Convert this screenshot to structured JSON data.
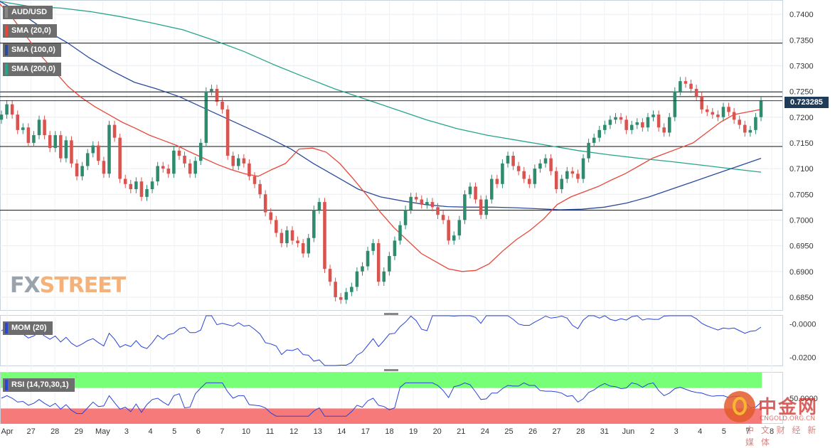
{
  "symbol_label": "AUD/USD",
  "indicators": {
    "sma20": "SMA (20,0)",
    "sma100": "SMA (100,0)",
    "sma200": "SMA (200,0)",
    "mom": "MOM (20)",
    "rsi": "RSI (14,70,30,1)"
  },
  "brand": {
    "part1": "FX",
    "part2": "STREET"
  },
  "current_price": "0.723285",
  "colors": {
    "up": "#2e8b6e",
    "down": "#d9534f",
    "sma20": "#e8483a",
    "sma100": "#2a4a9c",
    "sma200": "#27a58a",
    "mom_line": "#2a44d6",
    "rsi_over": "#77ff77",
    "rsi_under": "#f77a7a"
  },
  "chart_data": {
    "type": "candlestick",
    "ylim": [
      0.6825,
      0.7425
    ],
    "y_ticks": [
      "0.7400",
      "0.7350",
      "0.7300",
      "0.7250",
      "0.7200",
      "0.7150",
      "0.7100",
      "0.7050",
      "0.7000",
      "0.6950",
      "0.6900",
      "0.6850"
    ],
    "x_labels": [
      "Apr",
      "27",
      "28",
      "29",
      "May",
      "3",
      "4",
      "5",
      "6",
      "7",
      "10",
      "11",
      "12",
      "13",
      "14",
      "17",
      "18",
      "19",
      "20",
      "21",
      "24",
      "25",
      "26",
      "27",
      "28",
      "31",
      "Jun",
      "2",
      "3",
      "4",
      "5",
      "7",
      "8"
    ],
    "horizontal_lines": [
      0.7344,
      0.7249,
      0.724,
      0.7143,
      0.7019
    ],
    "closes": [
      0.7205,
      0.7225,
      0.7205,
      0.7175,
      0.718,
      0.715,
      0.7165,
      0.7195,
      0.7165,
      0.714,
      0.7165,
      0.712,
      0.7155,
      0.711,
      0.7085,
      0.7105,
      0.713,
      0.7145,
      0.7115,
      0.709,
      0.7185,
      0.716,
      0.708,
      0.707,
      0.706,
      0.7075,
      0.7045,
      0.706,
      0.7075,
      0.7105,
      0.71,
      0.709,
      0.7135,
      0.7125,
      0.711,
      0.709,
      0.7115,
      0.715,
      0.725,
      0.7255,
      0.723,
      0.7215,
      0.7125,
      0.7105,
      0.712,
      0.711,
      0.7085,
      0.707,
      0.705,
      0.7015,
      0.7,
      0.6975,
      0.6955,
      0.698,
      0.696,
      0.6955,
      0.6935,
      0.6965,
      0.702,
      0.7035,
      0.6905,
      0.688,
      0.685,
      0.6845,
      0.686,
      0.687,
      0.69,
      0.691,
      0.694,
      0.6955,
      0.688,
      0.69,
      0.693,
      0.696,
      0.699,
      0.702,
      0.7045,
      0.704,
      0.703,
      0.7035,
      0.7025,
      0.701,
      0.7,
      0.696,
      0.697,
      0.7,
      0.705,
      0.7065,
      0.704,
      0.701,
      0.704,
      0.708,
      0.707,
      0.711,
      0.7125,
      0.7105,
      0.7095,
      0.708,
      0.707,
      0.71,
      0.711,
      0.712,
      0.7095,
      0.706,
      0.708,
      0.7095,
      0.709,
      0.708,
      0.712,
      0.715,
      0.716,
      0.7175,
      0.7185,
      0.7195,
      0.72,
      0.7195,
      0.7175,
      0.7185,
      0.719,
      0.718,
      0.72,
      0.7205,
      0.718,
      0.717,
      0.72,
      0.725,
      0.727,
      0.7265,
      0.7255,
      0.724,
      0.7215,
      0.721,
      0.7205,
      0.72,
      0.722,
      0.721,
      0.7195,
      0.7185,
      0.717,
      0.7175,
      0.72,
      0.7232
    ],
    "sma20": [
      0.742,
      0.739,
      0.7355,
      0.732,
      0.729,
      0.726,
      0.7238,
      0.722,
      0.7205,
      0.719,
      0.7178,
      0.7165,
      0.7155,
      0.7145,
      0.7132,
      0.712,
      0.7108,
      0.7098,
      0.709,
      0.7085,
      0.7098,
      0.711,
      0.7138,
      0.714,
      0.7132,
      0.711,
      0.708,
      0.7048,
      0.7015,
      0.6985,
      0.696,
      0.6935,
      0.692,
      0.6905,
      0.69,
      0.6902,
      0.6915,
      0.694,
      0.6962,
      0.698,
      0.7002,
      0.703,
      0.7045,
      0.7055,
      0.7065,
      0.7078,
      0.709,
      0.7105,
      0.712,
      0.713,
      0.714,
      0.715,
      0.717,
      0.719,
      0.7205,
      0.721,
      0.7215
    ],
    "sma100": [
      0.7425,
      0.74,
      0.737,
      0.7345,
      0.7315,
      0.729,
      0.7268,
      0.7255,
      0.724,
      0.722,
      0.72,
      0.718,
      0.716,
      0.7138,
      0.711,
      0.7085,
      0.706,
      0.7045,
      0.7037,
      0.703,
      0.7026,
      0.7025,
      0.7025,
      0.7024,
      0.7022,
      0.702,
      0.7021,
      0.7025,
      0.7033,
      0.7045,
      0.706,
      0.7075,
      0.709,
      0.7105,
      0.712
    ],
    "sma200": [
      0.7425,
      0.7415,
      0.7412,
      0.7405,
      0.7395,
      0.7383,
      0.737,
      0.735,
      0.7328,
      0.7302,
      0.7278,
      0.7255,
      0.7235,
      0.7215,
      0.7195,
      0.7178,
      0.7165,
      0.7155,
      0.7145,
      0.7135,
      0.7127,
      0.712,
      0.7114,
      0.7107,
      0.71,
      0.7093
    ],
    "mom": {
      "ticks": [
        "-0.0000",
        "-0.0200"
      ],
      "ylim": [
        -0.025,
        0.005
      ]
    },
    "rsi": {
      "ticks": [
        "50.0000"
      ],
      "ylim": [
        0,
        100
      ],
      "levels": [
        70,
        30
      ]
    }
  }
}
